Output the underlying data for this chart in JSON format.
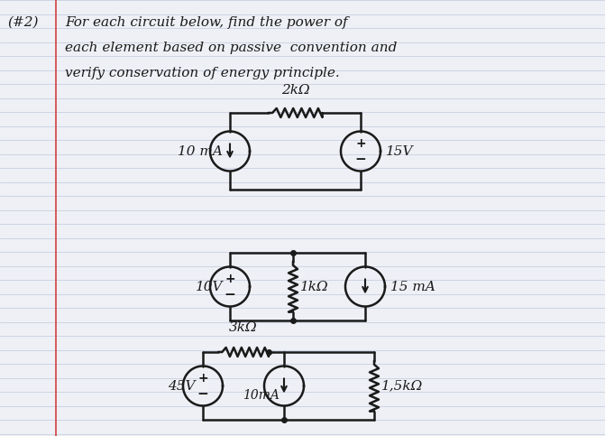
{
  "bg_color": "#eef0f5",
  "line_color": "#1a1a1a",
  "paper_lines_color": "#c5cce0",
  "red_margin_color": "#d04040",
  "header_line1": "For each circuit below, find the power of",
  "header_line2": "each element based on passive  convention and",
  "header_line3": "verify conservation of energy principle.",
  "header_tag": "(#2)",
  "c1_res_label": "2kΩ",
  "c1_cur_label": "10 mA",
  "c1_volt_label": "15V",
  "c2_volt_label": "10V",
  "c2_res_label": "1kΩ",
  "c2_cur_label": "15 mA",
  "c3_volt_label": "45V",
  "c3_res1_label": "3kΩ",
  "c3_cur_label": "10mA",
  "c3_res2_label": "1,5kΩ"
}
